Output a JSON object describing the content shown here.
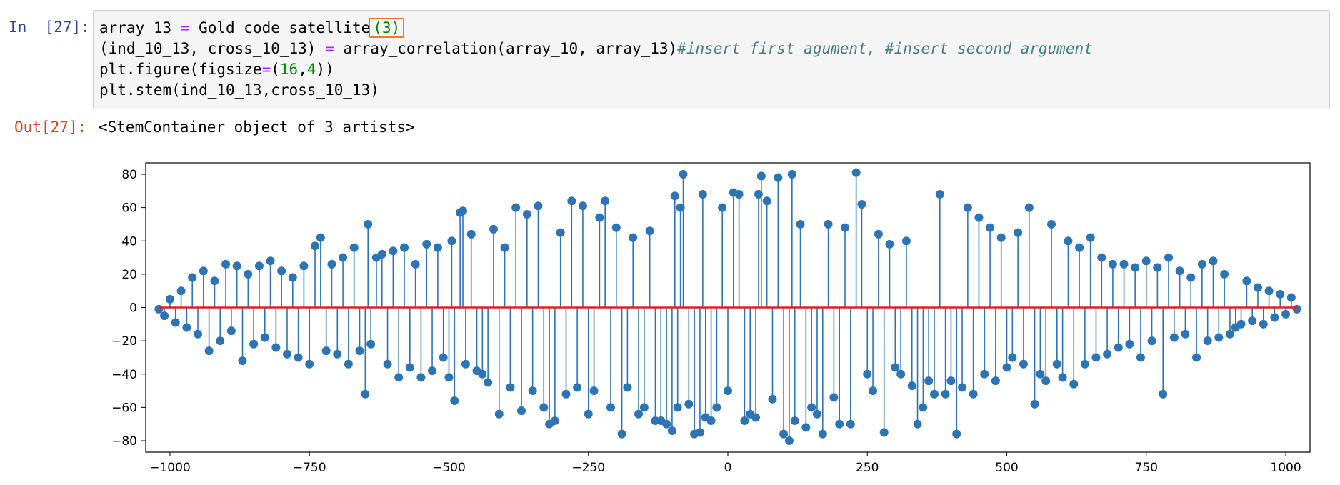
{
  "cell": {
    "in_prompt": "In  [27]:",
    "out_prompt": "Out[27]:",
    "code_lines": [
      "array_13 = Gold_code_satellite(3)",
      "(ind_10_13, cross_10_13) = array_correlation(array_10, array_13)#insert first agument, #insert second argument",
      "plt.figure(figsize=(16,4))",
      "plt.stem(ind_10_13,cross_10_13)"
    ],
    "highlighted_argument": "(3)",
    "output_text": "<StemContainer object of 3 artists>"
  },
  "colors": {
    "stem": "#2c74b4",
    "baseline": "#d62728",
    "highlight_box": "#f47a20"
  },
  "chart_data": {
    "type": "stem",
    "title": "",
    "xlabel": "",
    "ylabel": "",
    "xlim": [
      -1023,
      1023
    ],
    "ylim": [
      -80,
      80
    ],
    "x_ticks": [
      -1000,
      -750,
      -500,
      -250,
      0,
      250,
      500,
      750,
      1000
    ],
    "y_ticks": [
      -80,
      -60,
      -40,
      -20,
      0,
      20,
      40,
      60,
      80
    ],
    "x_tick_labels": [
      "−1000",
      "−750",
      "−500",
      "−250",
      "0",
      "250",
      "500",
      "750",
      "1000"
    ],
    "y_tick_labels": [
      "−80",
      "−60",
      "−40",
      "−20",
      "0",
      "20",
      "40",
      "60",
      "80"
    ],
    "baseline": 0,
    "grid": false,
    "legend": "none",
    "points": [
      [
        -1020,
        -1
      ],
      [
        -1010,
        -5
      ],
      [
        -1000,
        5
      ],
      [
        -990,
        -9
      ],
      [
        -980,
        10
      ],
      [
        -970,
        -12
      ],
      [
        -960,
        18
      ],
      [
        -950,
        -16
      ],
      [
        -940,
        22
      ],
      [
        -930,
        -26
      ],
      [
        -920,
        16
      ],
      [
        -910,
        -20
      ],
      [
        -900,
        26
      ],
      [
        -890,
        -14
      ],
      [
        -880,
        25
      ],
      [
        -870,
        -32
      ],
      [
        -860,
        20
      ],
      [
        -850,
        -22
      ],
      [
        -840,
        25
      ],
      [
        -830,
        -18
      ],
      [
        -820,
        28
      ],
      [
        -810,
        -24
      ],
      [
        -800,
        22
      ],
      [
        -790,
        -28
      ],
      [
        -780,
        18
      ],
      [
        -770,
        -30
      ],
      [
        -760,
        25
      ],
      [
        -750,
        -34
      ],
      [
        -740,
        37
      ],
      [
        -730,
        42
      ],
      [
        -720,
        -26
      ],
      [
        -710,
        26
      ],
      [
        -700,
        -28
      ],
      [
        -690,
        30
      ],
      [
        -680,
        -34
      ],
      [
        -670,
        36
      ],
      [
        -660,
        -26
      ],
      [
        -650,
        -52
      ],
      [
        -645,
        50
      ],
      [
        -640,
        -22
      ],
      [
        -630,
        30
      ],
      [
        -620,
        32
      ],
      [
        -610,
        -34
      ],
      [
        -600,
        34
      ],
      [
        -590,
        -42
      ],
      [
        -580,
        36
      ],
      [
        -570,
        -36
      ],
      [
        -560,
        26
      ],
      [
        -550,
        -42
      ],
      [
        -540,
        38
      ],
      [
        -530,
        -38
      ],
      [
        -520,
        36
      ],
      [
        -510,
        -30
      ],
      [
        -500,
        -42
      ],
      [
        -495,
        40
      ],
      [
        -490,
        -56
      ],
      [
        -480,
        57
      ],
      [
        -475,
        58
      ],
      [
        -470,
        -34
      ],
      [
        -460,
        44
      ],
      [
        -450,
        -38
      ],
      [
        -440,
        -40
      ],
      [
        -430,
        -45
      ],
      [
        -420,
        47
      ],
      [
        -410,
        -64
      ],
      [
        -400,
        36
      ],
      [
        -390,
        -48
      ],
      [
        -380,
        60
      ],
      [
        -370,
        -62
      ],
      [
        -360,
        56
      ],
      [
        -350,
        -50
      ],
      [
        -340,
        61
      ],
      [
        -330,
        -60
      ],
      [
        -320,
        -70
      ],
      [
        -310,
        -68
      ],
      [
        -300,
        45
      ],
      [
        -290,
        -52
      ],
      [
        -280,
        64
      ],
      [
        -270,
        -48
      ],
      [
        -260,
        61
      ],
      [
        -250,
        -64
      ],
      [
        -240,
        -50
      ],
      [
        -230,
        54
      ],
      [
        -220,
        64
      ],
      [
        -210,
        -60
      ],
      [
        -200,
        48
      ],
      [
        -190,
        -76
      ],
      [
        -180,
        -48
      ],
      [
        -170,
        42
      ],
      [
        -160,
        -64
      ],
      [
        -150,
        -60
      ],
      [
        -140,
        46
      ],
      [
        -130,
        -68
      ],
      [
        -120,
        -68
      ],
      [
        -110,
        -70
      ],
      [
        -100,
        -74
      ],
      [
        -95,
        67
      ],
      [
        -90,
        -60
      ],
      [
        -85,
        60
      ],
      [
        -80,
        80
      ],
      [
        -70,
        -58
      ],
      [
        -60,
        -76
      ],
      [
        -50,
        -75
      ],
      [
        -45,
        68
      ],
      [
        -40,
        -66
      ],
      [
        -30,
        -68
      ],
      [
        -20,
        -60
      ],
      [
        -10,
        60
      ],
      [
        0,
        -50
      ],
      [
        10,
        69
      ],
      [
        20,
        68
      ],
      [
        30,
        -68
      ],
      [
        40,
        -64
      ],
      [
        50,
        -66
      ],
      [
        55,
        68
      ],
      [
        60,
        79
      ],
      [
        70,
        64
      ],
      [
        80,
        -55
      ],
      [
        90,
        78
      ],
      [
        100,
        -76
      ],
      [
        110,
        -80
      ],
      [
        115,
        80
      ],
      [
        120,
        -68
      ],
      [
        130,
        50
      ],
      [
        140,
        -72
      ],
      [
        150,
        -60
      ],
      [
        160,
        -64
      ],
      [
        170,
        -76
      ],
      [
        180,
        50
      ],
      [
        190,
        -54
      ],
      [
        200,
        -70
      ],
      [
        210,
        48
      ],
      [
        220,
        -70
      ],
      [
        230,
        81
      ],
      [
        240,
        62
      ],
      [
        250,
        -40
      ],
      [
        260,
        -50
      ],
      [
        270,
        44
      ],
      [
        280,
        -75
      ],
      [
        290,
        38
      ],
      [
        300,
        -36
      ],
      [
        310,
        -40
      ],
      [
        320,
        40
      ],
      [
        330,
        -47
      ],
      [
        340,
        -70
      ],
      [
        350,
        -60
      ],
      [
        360,
        -44
      ],
      [
        370,
        -52
      ],
      [
        380,
        68
      ],
      [
        390,
        -52
      ],
      [
        400,
        -44
      ],
      [
        410,
        -76
      ],
      [
        420,
        -48
      ],
      [
        430,
        60
      ],
      [
        440,
        -52
      ],
      [
        450,
        54
      ],
      [
        460,
        -40
      ],
      [
        470,
        48
      ],
      [
        480,
        -44
      ],
      [
        490,
        42
      ],
      [
        500,
        -36
      ],
      [
        510,
        -30
      ],
      [
        520,
        45
      ],
      [
        530,
        -34
      ],
      [
        540,
        60
      ],
      [
        550,
        -58
      ],
      [
        560,
        -40
      ],
      [
        570,
        -44
      ],
      [
        580,
        50
      ],
      [
        590,
        -34
      ],
      [
        600,
        -42
      ],
      [
        610,
        40
      ],
      [
        620,
        -46
      ],
      [
        630,
        36
      ],
      [
        640,
        -34
      ],
      [
        650,
        42
      ],
      [
        660,
        -30
      ],
      [
        670,
        30
      ],
      [
        680,
        -28
      ],
      [
        690,
        26
      ],
      [
        700,
        -24
      ],
      [
        710,
        26
      ],
      [
        720,
        -22
      ],
      [
        730,
        24
      ],
      [
        740,
        -30
      ],
      [
        750,
        28
      ],
      [
        760,
        -20
      ],
      [
        770,
        24
      ],
      [
        780,
        -52
      ],
      [
        790,
        30
      ],
      [
        800,
        -18
      ],
      [
        810,
        22
      ],
      [
        820,
        -16
      ],
      [
        830,
        18
      ],
      [
        840,
        -30
      ],
      [
        850,
        26
      ],
      [
        860,
        -20
      ],
      [
        870,
        28
      ],
      [
        880,
        -18
      ],
      [
        890,
        20
      ],
      [
        900,
        -16
      ],
      [
        910,
        -12
      ],
      [
        920,
        -10
      ],
      [
        930,
        16
      ],
      [
        940,
        -8
      ],
      [
        950,
        12
      ],
      [
        960,
        -10
      ],
      [
        970,
        10
      ],
      [
        980,
        -6
      ],
      [
        990,
        8
      ],
      [
        1000,
        -4
      ],
      [
        1010,
        6
      ],
      [
        1020,
        -1
      ]
    ]
  }
}
